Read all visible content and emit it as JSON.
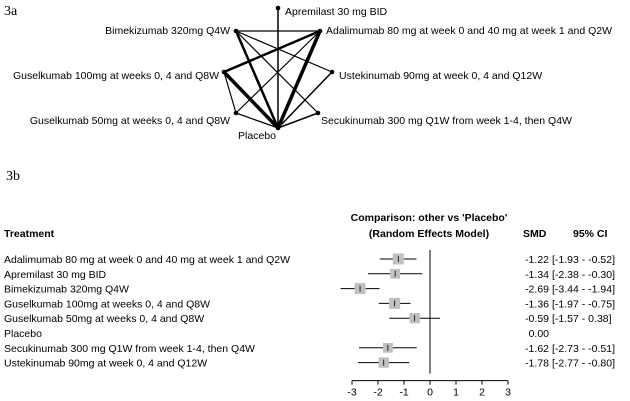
{
  "panel_a": {
    "label": "3a",
    "nodes": [
      {
        "id": "apremilast",
        "label": "Apremilast 30 mg BID"
      },
      {
        "id": "adalimumab",
        "label": "Adalimumab 80 mg at week 0 and 40 mg at week 1 and Q2W"
      },
      {
        "id": "ustekinumab",
        "label": "Ustekinumab 90mg at week 0, 4 and Q12W"
      },
      {
        "id": "secukinumab",
        "label": "Secukinumab 300 mg Q1W from week 1-4, then Q4W"
      },
      {
        "id": "placebo",
        "label": "Placebo"
      },
      {
        "id": "guselkumab50",
        "label": "Guselkumab 50mg at weeks 0, 4 and Q8W"
      },
      {
        "id": "guselkumab100",
        "label": "Guselkumab 100mg at weeks 0, 4 and Q8W"
      },
      {
        "id": "bimekizumab",
        "label": "Bimekizumab 320mg Q4W"
      }
    ],
    "edges": [
      {
        "from": "placebo",
        "to": "apremilast",
        "weight": 1.5
      },
      {
        "from": "placebo",
        "to": "adalimumab",
        "weight": 3.5
      },
      {
        "from": "placebo",
        "to": "ustekinumab",
        "weight": 1.5
      },
      {
        "from": "placebo",
        "to": "secukinumab",
        "weight": 1.5
      },
      {
        "from": "placebo",
        "to": "guselkumab50",
        "weight": 1.2
      },
      {
        "from": "placebo",
        "to": "guselkumab100",
        "weight": 3.5
      },
      {
        "from": "placebo",
        "to": "bimekizumab",
        "weight": 2.5
      },
      {
        "from": "bimekizumab",
        "to": "adalimumab",
        "weight": 1.2
      },
      {
        "from": "bimekizumab",
        "to": "ustekinumab",
        "weight": 1.2
      },
      {
        "from": "guselkumab100",
        "to": "adalimumab",
        "weight": 2.5
      },
      {
        "from": "guselkumab100",
        "to": "guselkumab50",
        "weight": 1.2
      },
      {
        "from": "guselkumab50",
        "to": "adalimumab",
        "weight": 1.2
      },
      {
        "from": "bimekizumab",
        "to": "secukinumab",
        "weight": 1.2
      }
    ]
  },
  "panel_b": {
    "label": "3b",
    "header": {
      "treatment": "Treatment",
      "comparison_line1": "Comparison: other vs 'Placebo'",
      "comparison_line2": "(Random Effects Model)",
      "smd": "SMD",
      "ci": "95% CI"
    }
  },
  "chart_data": {
    "type": "forest",
    "title": "Comparison: other vs 'Placebo' (Random Effects Model)",
    "xlabel": "",
    "ylabel": "Treatment",
    "xlim": [
      -3,
      3
    ],
    "xticks": [
      -3,
      -2,
      -1,
      0,
      1,
      2,
      3
    ],
    "reference_line": 0,
    "rows": [
      {
        "treatment": "Adalimumab 80 mg at week 0 and 40 mg at week 1 and Q2W",
        "smd": -1.22,
        "lower": -1.93,
        "upper": -0.52,
        "smd_text": "-1.22",
        "ci_text": "[-1.93 - -0.52]",
        "weight": 1.0
      },
      {
        "treatment": "Apremilast 30 mg BID",
        "smd": -1.34,
        "lower": -2.38,
        "upper": -0.3,
        "smd_text": "-1.34",
        "ci_text": "[-2.38 - -0.30]",
        "weight": 0.8
      },
      {
        "treatment": "Bimekizumab 320mg Q4W",
        "smd": -2.69,
        "lower": -3.44,
        "upper": -1.94,
        "smd_text": "-2.69",
        "ci_text": "[-3.44 - -1.94]",
        "weight": 1.0
      },
      {
        "treatment": "Guselkumab 100mg at weeks 0, 4 and Q8W",
        "smd": -1.36,
        "lower": -1.97,
        "upper": -0.75,
        "smd_text": "-1.36",
        "ci_text": "[-1.97 - -0.75]",
        "weight": 1.0
      },
      {
        "treatment": "Guselkumab 50mg at weeks 0, 4 and Q8W",
        "smd": -0.59,
        "lower": -1.57,
        "upper": 0.38,
        "smd_text": "-0.59",
        "ci_text": "[-1.57 - 0.38]",
        "weight": 0.9
      },
      {
        "treatment": "Placebo",
        "smd": null,
        "lower": null,
        "upper": null,
        "smd_text": "0.00",
        "ci_text": "",
        "weight": 0
      },
      {
        "treatment": "Secukinumab 300 mg Q1W from week 1-4, then Q4W",
        "smd": -1.62,
        "lower": -2.73,
        "upper": -0.51,
        "smd_text": "-1.62",
        "ci_text": "[-2.73 - -0.51]",
        "weight": 0.8
      },
      {
        "treatment": "Ustekinumab 90mg at week 0, 4 and Q12W",
        "smd": -1.78,
        "lower": -2.77,
        "upper": -0.8,
        "smd_text": "-1.78",
        "ci_text": "[-2.77 - -0.80]",
        "weight": 0.9
      }
    ],
    "colors": {
      "box": "#c0c0c0",
      "line": "#000000",
      "edge": "#000000"
    }
  }
}
